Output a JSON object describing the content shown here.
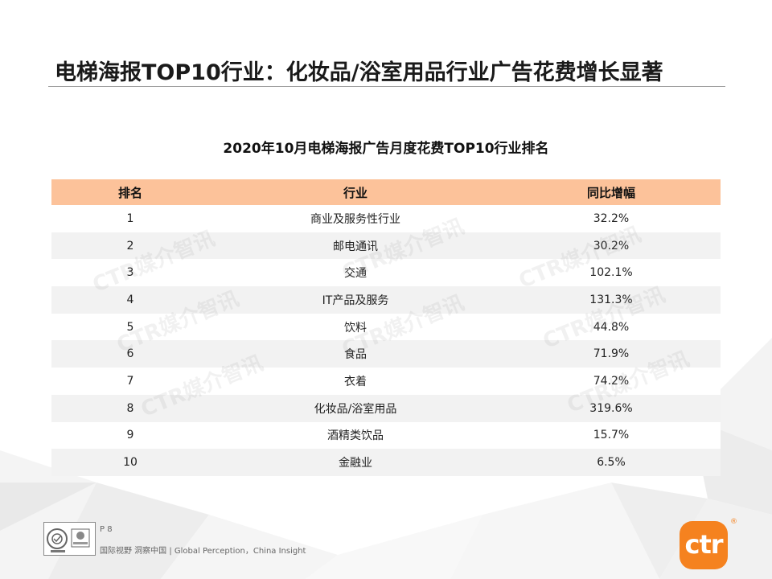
{
  "slide": {
    "title": "电梯海报TOP10行业：化妆品/浴室用品行业广告花费增长显著"
  },
  "table": {
    "caption": "2020年10月电梯海报广告月度花费TOP10行业排名",
    "headers": {
      "rank": "排名",
      "industry": "行业",
      "yoy": "同比增幅"
    },
    "rows": [
      {
        "rank": "1",
        "industry": "商业及服务性行业",
        "yoy": "32.2%"
      },
      {
        "rank": "2",
        "industry": "邮电通讯",
        "yoy": "30.2%"
      },
      {
        "rank": "3",
        "industry": "交通",
        "yoy": "102.1%"
      },
      {
        "rank": "4",
        "industry": "IT产品及服务",
        "yoy": "131.3%"
      },
      {
        "rank": "5",
        "industry": "饮料",
        "yoy": "44.8%"
      },
      {
        "rank": "6",
        "industry": "食品",
        "yoy": "71.9%"
      },
      {
        "rank": "7",
        "industry": "衣着",
        "yoy": "74.2%"
      },
      {
        "rank": "8",
        "industry": "化妆品/浴室用品",
        "yoy": "319.6%"
      },
      {
        "rank": "9",
        "industry": "酒精类饮品",
        "yoy": "15.7%"
      },
      {
        "rank": "10",
        "industry": "金融业",
        "yoy": "6.5%"
      }
    ],
    "colors": {
      "header_bg": "#fcc29a",
      "stripe_bg": "#f2f2f2"
    }
  },
  "watermark": {
    "text": "CTR媒介智讯"
  },
  "footer": {
    "page": "P 8",
    "tagline": "国际视野 洞察中国 | Global Perception，China Insight",
    "brand": "ctr",
    "reg": "®",
    "brand_color": "#f5821f",
    "cert_icon": "certification-seal-icon"
  }
}
